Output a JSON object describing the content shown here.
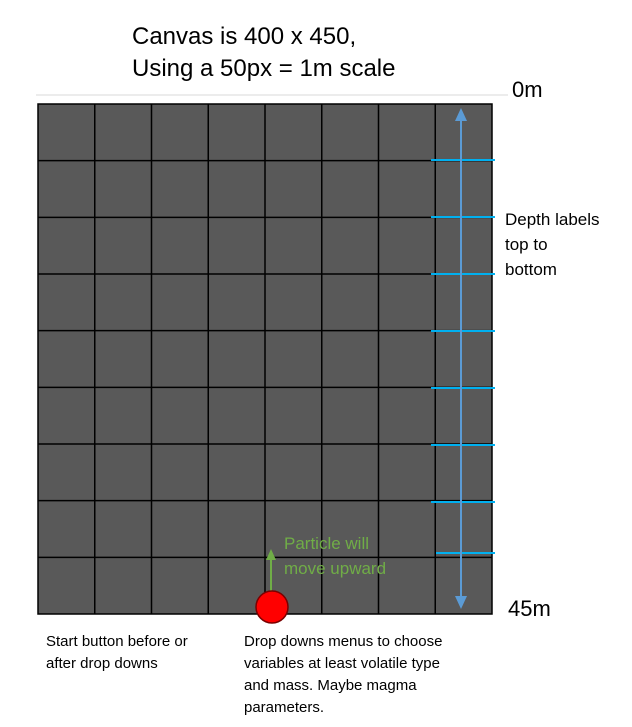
{
  "header": {
    "line1": "Canvas is 400 x 450,",
    "line2": "Using a 50px = 1m scale"
  },
  "depth": {
    "top_label": "0m",
    "bottom_label": "45m",
    "note_lines": [
      "Depth labels",
      "top to",
      "bottom"
    ],
    "arrow_color": "#5b9bd5",
    "tick_color": "#00b0f0"
  },
  "particle": {
    "label_lines": [
      "Particle will",
      "move upward"
    ],
    "label_color": "#70ad47",
    "fill_color": "#ff0000"
  },
  "notes": {
    "start_button_lines": [
      "Start button before or",
      "after drop downs"
    ],
    "dropdown_lines": [
      "Drop downs menus to choose",
      "variables at least volatile type",
      "and mass. Maybe magma",
      "parameters."
    ]
  },
  "grid": {
    "fill_color": "#595959",
    "line_color": "#000000",
    "columns": 8,
    "rows": 9
  }
}
